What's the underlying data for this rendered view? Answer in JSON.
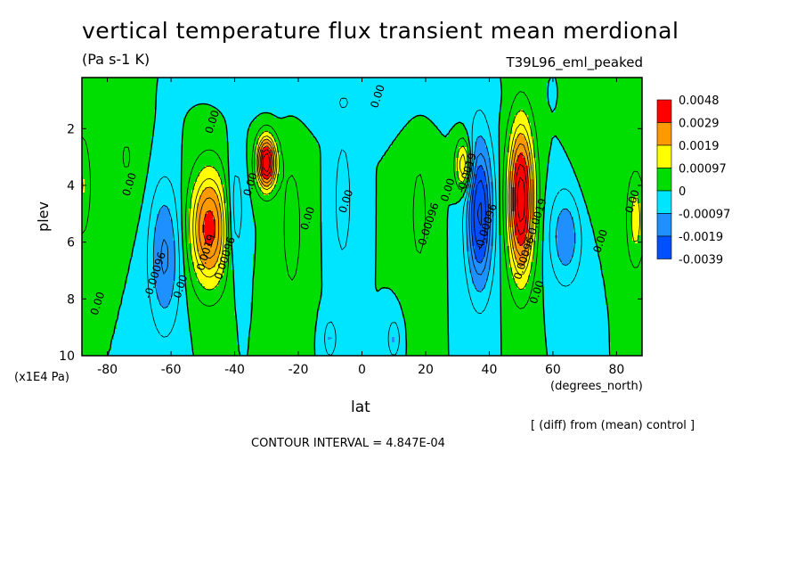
{
  "chart_data": {
    "type": "contour",
    "title": "vertical temperature flux transient mean merdional",
    "units": "(Pa s-1 K)",
    "run_name": "T39L96_eml_peaked",
    "xlabel": "lat",
    "xunits": "(degrees_north)",
    "ylabel": "plev",
    "yunits": "(x1E4 Pa)",
    "xlim": [
      -88,
      88
    ],
    "ylim": [
      10,
      0.2
    ],
    "x_ticks": [
      -80,
      -60,
      -40,
      -20,
      0,
      20,
      40,
      60,
      80
    ],
    "y_ticks": [
      2,
      4,
      6,
      8,
      10
    ],
    "note": "[ (diff) from (mean) control ]",
    "contour_interval_text": "CONTOUR INTERVAL = 4.847E-04",
    "contour_labels": [
      "0.00",
      "-0.00096",
      "0.00096",
      "0.0019",
      "-0.0019"
    ],
    "colorbar": {
      "levels": [
        "0.0048",
        "0.0029",
        "0.0019",
        "0.00097",
        "0",
        "-0.00097",
        "-0.0019",
        "-0.0039"
      ],
      "colors": [
        "#ff0000",
        "#ff9900",
        "#ffff00",
        "#00dd00",
        "#00e5ff",
        "#1e90ff",
        "#0050ff"
      ]
    },
    "colors": {
      "strong_positive": "#ff0000",
      "positive_high": "#ff9900",
      "positive": "#ffff00",
      "near_zero_positive": "#00dd00",
      "near_zero_negative": "#00e5ff",
      "negative": "#1e90ff",
      "strong_negative": "#0050ff"
    }
  }
}
